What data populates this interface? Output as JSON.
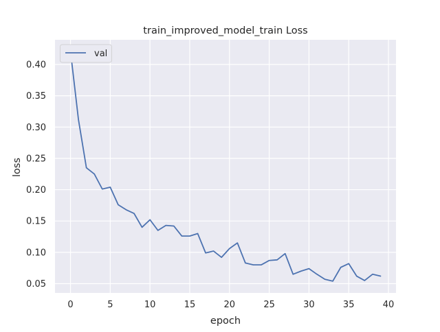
{
  "chart_data": {
    "type": "line",
    "title": "train_improved_model_train Loss",
    "xlabel": "epoch",
    "ylabel": "loss",
    "xlim": [
      -1.95,
      40.95
    ],
    "ylim": [
      0.0352,
      0.4394
    ],
    "xticks": [
      0,
      5,
      10,
      15,
      20,
      25,
      30,
      35,
      40
    ],
    "xtick_labels": [
      "0",
      "5",
      "10",
      "15",
      "20",
      "25",
      "30",
      "35",
      "40"
    ],
    "yticks": [
      0.05,
      0.1,
      0.15,
      0.2,
      0.25,
      0.3,
      0.35,
      0.4
    ],
    "ytick_labels": [
      "0.05",
      "0.10",
      "0.15",
      "0.20",
      "0.25",
      "0.30",
      "0.35",
      "0.40"
    ],
    "grid": true,
    "legend_position": "upper-left",
    "series": [
      {
        "name": "val",
        "color": "#4c72b0",
        "x": [
          0,
          1,
          2,
          3,
          4,
          5,
          6,
          7,
          8,
          9,
          10,
          11,
          12,
          13,
          14,
          15,
          16,
          17,
          18,
          19,
          20,
          21,
          22,
          23,
          24,
          25,
          26,
          27,
          28,
          29,
          30,
          31,
          32,
          33,
          34,
          35,
          36,
          37,
          38,
          39
        ],
        "values": [
          0.421,
          0.312,
          0.235,
          0.225,
          0.201,
          0.204,
          0.176,
          0.168,
          0.162,
          0.14,
          0.152,
          0.135,
          0.143,
          0.142,
          0.126,
          0.126,
          0.13,
          0.099,
          0.102,
          0.092,
          0.106,
          0.115,
          0.083,
          0.08,
          0.08,
          0.087,
          0.088,
          0.098,
          0.065,
          0.07,
          0.074,
          0.065,
          0.057,
          0.054,
          0.076,
          0.082,
          0.062,
          0.055,
          0.065,
          0.062
        ]
      }
    ]
  }
}
